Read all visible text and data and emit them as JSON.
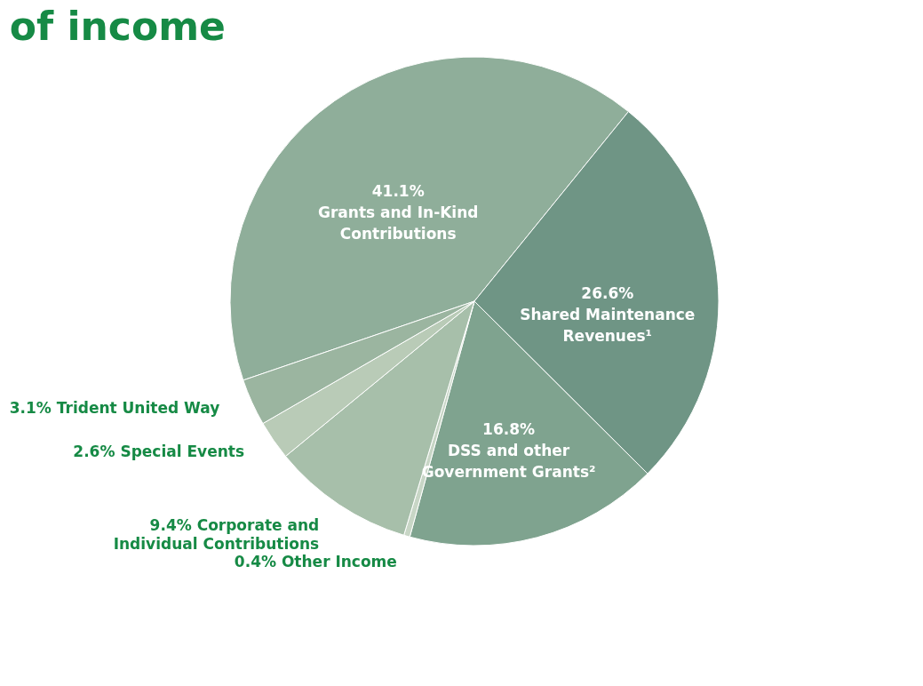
{
  "chart_data": {
    "type": "pie",
    "title": "of income",
    "categories": [
      "Grants and In-Kind Contributions",
      "Shared Maintenance Revenues¹",
      "DSS and other Government Grants²",
      "Other Income",
      "Corporate and Individual Contributions",
      "Special Events",
      "Trident United Way"
    ],
    "values": [
      41.1,
      26.6,
      16.8,
      0.4,
      9.4,
      2.6,
      3.1
    ],
    "value_labels": [
      "41.1%",
      "26.6%",
      "16.8%",
      "0.4%",
      "9.4%",
      "2.6%",
      "3.1%"
    ],
    "colors": [
      "#8fae9a",
      "#6f9585",
      "#7fa38f",
      "#c8d6c6",
      "#a7bfaa",
      "#b9cbb7",
      "#9bb5a0"
    ],
    "legend": false
  }
}
